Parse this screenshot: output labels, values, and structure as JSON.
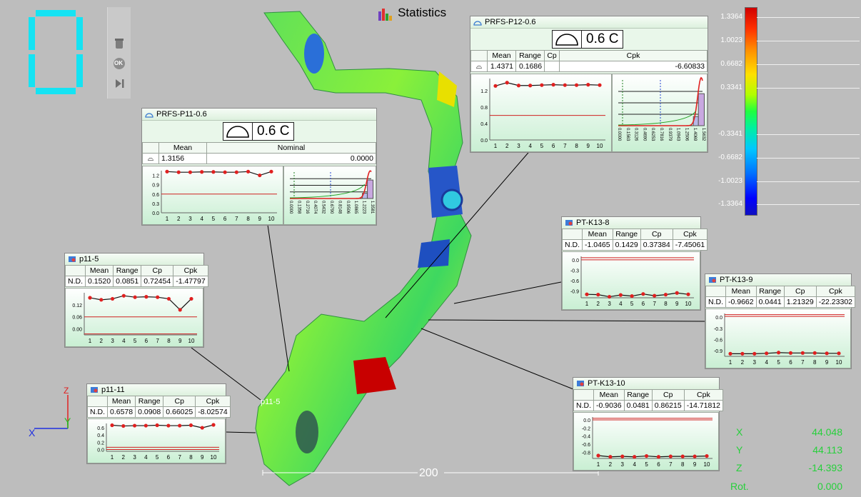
{
  "header": {
    "title": "Statistics",
    "counter_digit": "0"
  },
  "toolbar": {
    "ok_label": "OK"
  },
  "color_scale": {
    "labels": [
      "1.3364",
      "1.0023",
      "0.6682",
      "0.3341",
      "-0.3341",
      "-0.6682",
      "-1.0023",
      "-1.3364"
    ]
  },
  "dimension": {
    "label": "200"
  },
  "part_label": "p11-5",
  "coords": {
    "x_label": "X",
    "x_value": "44.048",
    "y_label": "Y",
    "y_value": "44.113",
    "z_label": "Z",
    "z_value": "-14.393",
    "rot_label": "Rot.",
    "rot_value": "0.000"
  },
  "triad": {
    "z": "Z",
    "y": "Y",
    "x": "X"
  },
  "panels": {
    "p12": {
      "title": "PRFS-P12-0.6",
      "big": "0.6 C",
      "headers": [
        "Mean",
        "Range",
        "Cp",
        "Cpk"
      ],
      "values": [
        "1.4371",
        "0.1686",
        "",
        "-6.60833"
      ],
      "ctrl_y": [
        "1.2",
        "0.8",
        "0.4",
        "0.0"
      ],
      "ctrl_x": [
        "1",
        "2",
        "3",
        "4",
        "5",
        "6",
        "7",
        "8",
        "9",
        "10"
      ],
      "ctrl_values": [
        1.32,
        1.4,
        1.33,
        1.33,
        1.34,
        1.35,
        1.34,
        1.34,
        1.35,
        1.34
      ],
      "hist_x": [
        "0.0000",
        "0.1563",
        "0.3126",
        "0.4690",
        "0.6253",
        "0.7816",
        "0.9379",
        "1.0943",
        "1.2506",
        "1.4069",
        "1.5632"
      ]
    },
    "p11": {
      "title": "PRFS-P11-0.6",
      "big": "0.6 C",
      "headers": [
        "Mean",
        "Nominal"
      ],
      "values": [
        "1.3156",
        "0.0000"
      ],
      "ctrl_y": [
        "1.2",
        "0.9",
        "0.6",
        "0.3",
        "0.0"
      ],
      "ctrl_x": [
        "1",
        "2",
        "3",
        "4",
        "5",
        "6",
        "7",
        "8",
        "9",
        "10"
      ],
      "ctrl_values": [
        1.32,
        1.3,
        1.3,
        1.31,
        1.31,
        1.3,
        1.3,
        1.32,
        1.2,
        1.32
      ],
      "hist_x": [
        "0.0000",
        "0.1358",
        "0.2716",
        "0.4074",
        "0.5432",
        "0.6790",
        "0.8148",
        "0.9506",
        "1.0865",
        "1.2223",
        "1.3581"
      ]
    },
    "k13_8": {
      "title": "PT-K13-8",
      "row_label": "N.D.",
      "headers": [
        "Mean",
        "Range",
        "Cp",
        "Cpk"
      ],
      "values": [
        "-1.0465",
        "0.1429",
        "0.37384",
        "-7.45061"
      ],
      "ctrl_y": [
        "0.0",
        "-0.3",
        "-0.6",
        "-0.9"
      ],
      "ctrl_x": [
        "1",
        "2",
        "3",
        "4",
        "5",
        "6",
        "7",
        "8",
        "9",
        "10"
      ],
      "ctrl_values": [
        -1.0,
        -1.01,
        -1.07,
        -1.02,
        -1.05,
        -0.99,
        -1.04,
        -1.01,
        -0.96,
        -1.0
      ]
    },
    "k13_9": {
      "title": "PT-K13-9",
      "row_label": "N.D.",
      "headers": [
        "Mean",
        "Range",
        "Cp",
        "Cpk"
      ],
      "values": [
        "-0.9662",
        "0.0441",
        "1.21329",
        "-22.23302"
      ],
      "ctrl_y": [
        "0.0",
        "-0.3",
        "-0.6",
        "-0.9"
      ],
      "ctrl_x": [
        "1",
        "2",
        "3",
        "4",
        "5",
        "6",
        "7",
        "8",
        "9",
        "10"
      ],
      "ctrl_values": [
        -0.98,
        -0.98,
        -0.98,
        -0.97,
        -0.95,
        -0.96,
        -0.96,
        -0.96,
        -0.97,
        -0.97
      ]
    },
    "k13_10": {
      "title": "PT-K13-10",
      "row_label": "N.D.",
      "headers": [
        "Mean",
        "Range",
        "Cp",
        "Cpk"
      ],
      "values": [
        "-0.9036",
        "0.0481",
        "0.86215",
        "-14.71812"
      ],
      "ctrl_y": [
        "0.0",
        "-0.2",
        "-0.4",
        "-0.6",
        "-0.8"
      ],
      "ctrl_x": [
        "1",
        "2",
        "3",
        "4",
        "5",
        "6",
        "7",
        "8",
        "9",
        "10"
      ],
      "ctrl_values": [
        -0.88,
        -0.91,
        -0.9,
        -0.91,
        -0.89,
        -0.91,
        -0.9,
        -0.9,
        -0.9,
        -0.89
      ]
    },
    "p11_5": {
      "title": "p11-5",
      "row_label": "N.D.",
      "headers": [
        "Mean",
        "Range",
        "Cp",
        "Cpk"
      ],
      "values": [
        "0.1520",
        "0.0851",
        "0.72454",
        "-1.47797"
      ],
      "ctrl_y": [
        "0.12",
        "0.06",
        "0.00"
      ],
      "ctrl_x": [
        "1",
        "2",
        "3",
        "4",
        "5",
        "6",
        "7",
        "8",
        "9",
        "10"
      ],
      "ctrl_values": [
        0.155,
        0.145,
        0.15,
        0.165,
        0.158,
        0.16,
        0.158,
        0.15,
        0.095,
        0.15
      ]
    },
    "p11_11": {
      "title": "p11-11",
      "row_label": "N.D.",
      "headers": [
        "Mean",
        "Range",
        "Cp",
        "Cpk"
      ],
      "values": [
        "0.6578",
        "0.0908",
        "0.66025",
        "-8.02574"
      ],
      "ctrl_y": [
        "0.6",
        "0.4",
        "0.2",
        "0.0"
      ],
      "ctrl_x": [
        "1",
        "2",
        "3",
        "4",
        "5",
        "6",
        "7",
        "8",
        "9",
        "10"
      ],
      "ctrl_values": [
        0.67,
        0.65,
        0.66,
        0.66,
        0.67,
        0.66,
        0.66,
        0.67,
        0.6,
        0.68
      ]
    }
  }
}
